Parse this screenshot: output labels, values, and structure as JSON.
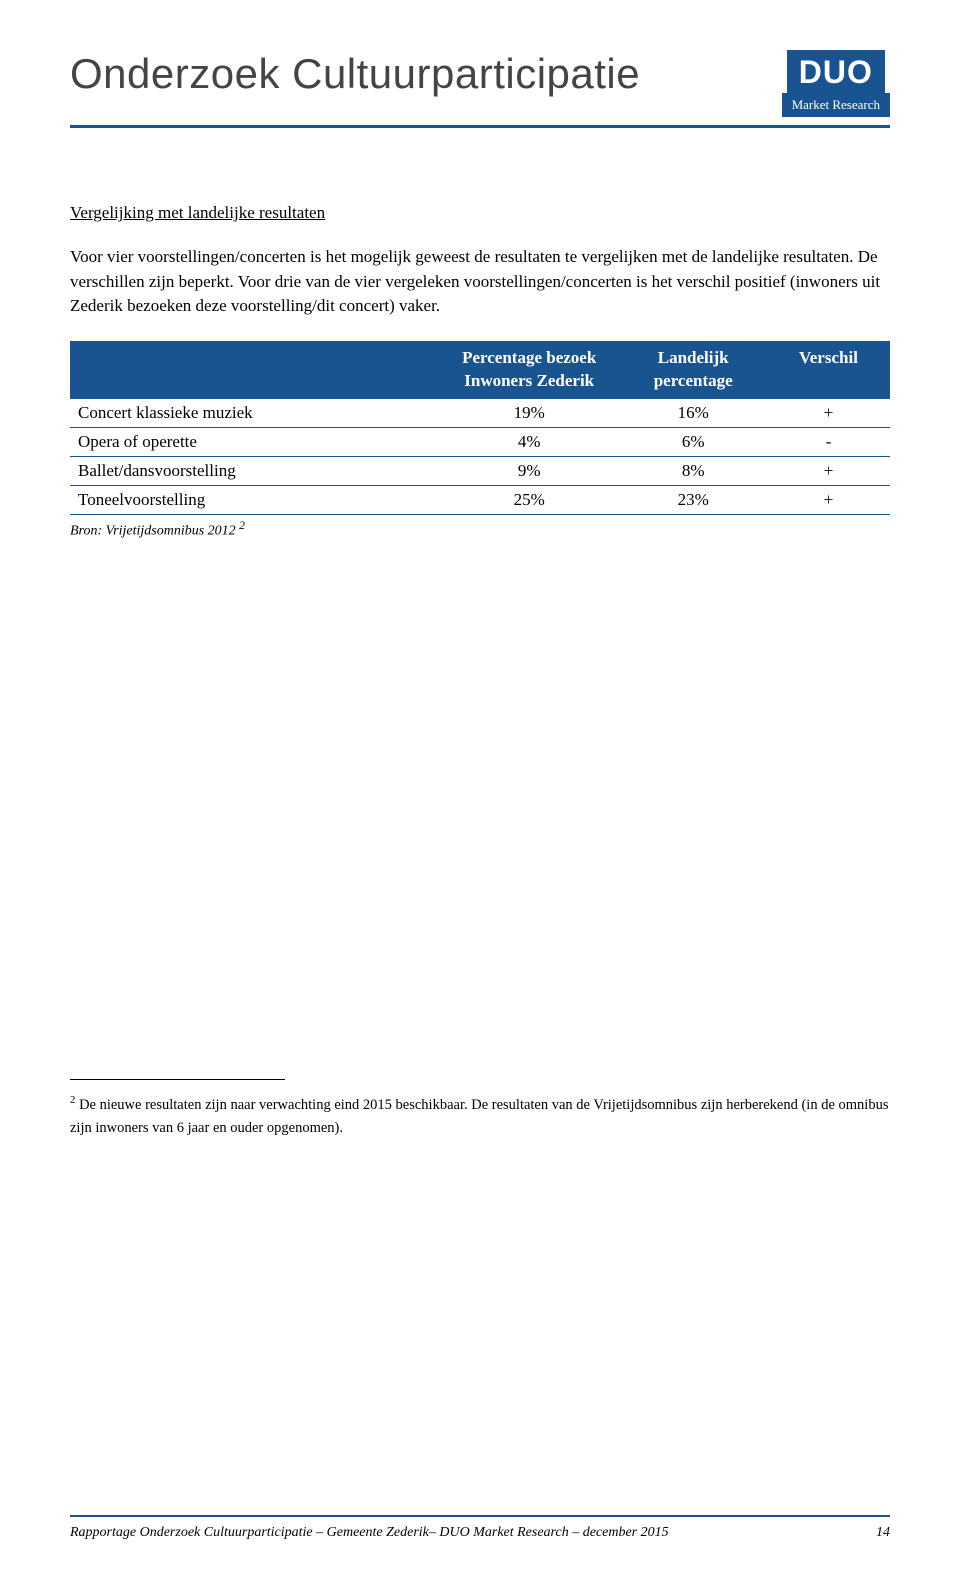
{
  "header": {
    "title": "Onderzoek Cultuurparticipatie",
    "logo_main": "DUO",
    "logo_sub": "Market Research"
  },
  "section": {
    "subheading": "Vergelijking met landelijke resultaten",
    "paragraph": "Voor vier voorstellingen/concerten is het mogelijk geweest de resultaten te vergelijken met de landelijke resultaten. De verschillen zijn beperkt. Voor drie van de vier vergeleken voorstellingen/concerten is het verschil positief (inwoners uit Zederik bezoeken deze voorstelling/dit concert) vaker."
  },
  "table": {
    "columns": [
      "",
      "Percentage bezoek Inwoners Zederik",
      "Landelijk percentage",
      "Verschil"
    ],
    "col1_line1": "Percentage bezoek",
    "col1_line2": "Inwoners Zederik",
    "col2_line1": "Landelijk",
    "col2_line2": "percentage",
    "col3": "Verschil",
    "rows": [
      {
        "label": "Concert klassieke muziek",
        "zederik": "19%",
        "landelijk": "16%",
        "verschil": "+"
      },
      {
        "label": "Opera of operette",
        "zederik": "4%",
        "landelijk": "6%",
        "verschil": "-"
      },
      {
        "label": "Ballet/dansvoorstelling",
        "zederik": "9%",
        "landelijk": "8%",
        "verschil": "+"
      },
      {
        "label": "Toneelvoorstelling",
        "zederik": "25%",
        "landelijk": "23%",
        "verschil": "+"
      }
    ],
    "source_prefix": "Bron: Vrijetijdsomnibus 2012 ",
    "source_sup": "2",
    "header_bg": "#1a5490",
    "header_color": "#ffffff",
    "row_border_color": "#1a5490"
  },
  "footnote": {
    "marker": "2",
    "text": " De nieuwe resultaten zijn naar verwachting eind 2015 beschikbaar. De resultaten van de Vrijetijdsomnibus zijn herberekend (in de omnibus zijn inwoners van 6 jaar en ouder opgenomen)."
  },
  "footer": {
    "left": "Rapportage Onderzoek Cultuurparticipatie – Gemeente Zederik– DUO Market Research – december 2015",
    "page": "14"
  },
  "colors": {
    "accent": "#1a5490",
    "text": "#000000",
    "title": "#444444",
    "background": "#ffffff"
  }
}
